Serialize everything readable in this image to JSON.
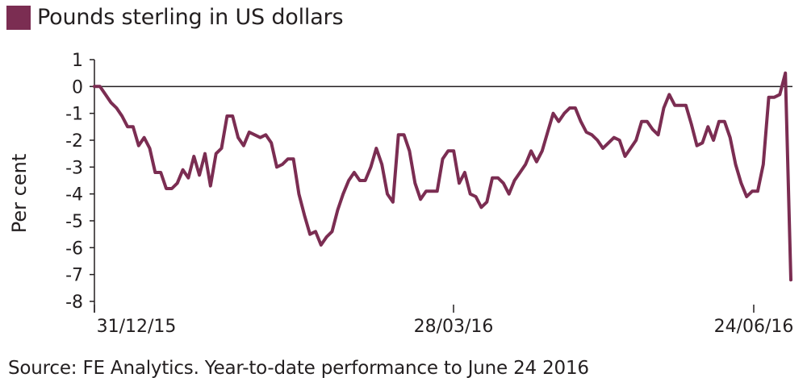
{
  "colors": {
    "series": "#7b2d52",
    "axis": "#231f20"
  },
  "source_note": "Source: FE Analytics. Year-to-date performance to June 24 2016",
  "chart_data": {
    "type": "line",
    "title": "",
    "xlabel": "",
    "ylabel": "Per cent",
    "ylim": [
      -8,
      1
    ],
    "yticks": [
      1,
      0,
      -1,
      -2,
      -3,
      -4,
      -5,
      -6,
      -7,
      -8
    ],
    "x_tick_labels": [
      "31/12/15",
      "28/03/16",
      "24/06/16"
    ],
    "grid": false,
    "legend_position": "top-left",
    "series": [
      {
        "name": "Pounds sterling in US dollars",
        "values": [
          0,
          0,
          -0.3,
          -0.6,
          -0.8,
          -1.1,
          -1.5,
          -1.5,
          -2.2,
          -1.9,
          -2.3,
          -3.2,
          -3.2,
          -3.8,
          -3.8,
          -3.6,
          -3.1,
          -3.4,
          -2.6,
          -3.3,
          -2.5,
          -3.7,
          -2.5,
          -2.3,
          -1.1,
          -1.1,
          -1.9,
          -2.2,
          -1.7,
          -1.8,
          -1.9,
          -1.8,
          -2.1,
          -3.0,
          -2.9,
          -2.7,
          -2.7,
          -4.0,
          -4.8,
          -5.5,
          -5.4,
          -5.9,
          -5.6,
          -5.4,
          -4.6,
          -4.0,
          -3.5,
          -3.2,
          -3.5,
          -3.5,
          -3.0,
          -2.3,
          -2.9,
          -4.0,
          -4.3,
          -1.8,
          -1.8,
          -2.4,
          -3.6,
          -4.2,
          -3.9,
          -3.9,
          -3.9,
          -2.7,
          -2.4,
          -2.4,
          -3.6,
          -3.2,
          -4.0,
          -4.1,
          -4.5,
          -4.3,
          -3.4,
          -3.4,
          -3.6,
          -4.0,
          -3.5,
          -3.2,
          -2.9,
          -2.4,
          -2.8,
          -2.4,
          -1.7,
          -1.0,
          -1.3,
          -1.0,
          -0.8,
          -0.8,
          -1.3,
          -1.7,
          -1.8,
          -2.0,
          -2.3,
          -2.1,
          -1.9,
          -2.0,
          -2.6,
          -2.3,
          -2.0,
          -1.3,
          -1.3,
          -1.6,
          -1.8,
          -0.8,
          -0.3,
          -0.7,
          -0.7,
          -0.7,
          -1.4,
          -2.2,
          -2.1,
          -1.5,
          -2.0,
          -1.3,
          -1.3,
          -1.9,
          -2.9,
          -3.6,
          -4.1,
          -3.9,
          -3.9,
          -2.9,
          -0.4,
          -0.4,
          -0.3,
          0.5,
          -7.2
        ]
      }
    ]
  }
}
